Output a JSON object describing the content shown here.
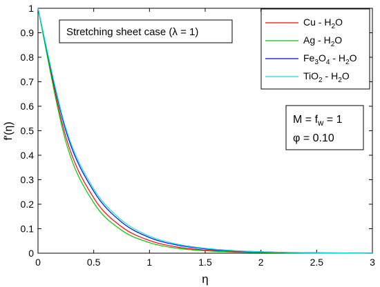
{
  "chart_data": {
    "type": "line",
    "xlabel": "η",
    "ylabel": "f'(η)",
    "xlim": [
      0,
      3
    ],
    "ylim": [
      0,
      1
    ],
    "xticks": [
      "0",
      "0.5",
      "1",
      "1.5",
      "2",
      "2.5",
      "3"
    ],
    "yticks": [
      "0",
      "0.1",
      "0.2",
      "0.3",
      "0.4",
      "0.5",
      "0.6",
      "0.7",
      "0.8",
      "0.9",
      "1"
    ],
    "grid": false,
    "legend_position": "top-right",
    "x": [
      0,
      0.25,
      0.5,
      0.75,
      1.0,
      1.25,
      1.5,
      1.75,
      2.0,
      2.25,
      2.5,
      2.75,
      3.0
    ],
    "series": [
      {
        "name": "Cu - H2O",
        "label_main": "Cu - H",
        "label_parts": [
          {
            "t": "Cu - H"
          },
          {
            "t": "2",
            "sub": true
          },
          {
            "t": "O"
          }
        ],
        "color": "#ff0000",
        "values": [
          1.0,
          0.475,
          0.226,
          0.108,
          0.052,
          0.025,
          0.013,
          0.007,
          0.004,
          0.002,
          0.001,
          0.0005,
          0.0
        ]
      },
      {
        "name": "Ag - H2O",
        "label_parts": [
          {
            "t": "Ag - H"
          },
          {
            "t": "2",
            "sub": true
          },
          {
            "t": "O"
          }
        ],
        "color": "#00c800",
        "values": [
          1.0,
          0.455,
          0.206,
          0.094,
          0.043,
          0.02,
          0.01,
          0.005,
          0.003,
          0.0015,
          0.0008,
          0.0004,
          0.0
        ]
      },
      {
        "name": "Fe3O4 - H2O",
        "label_parts": [
          {
            "t": "Fe"
          },
          {
            "t": "3",
            "sub": true
          },
          {
            "t": "O"
          },
          {
            "t": "4",
            "sub": true
          },
          {
            "t": " - H"
          },
          {
            "t": "2",
            "sub": true
          },
          {
            "t": "O"
          }
        ],
        "color": "#0000ff",
        "values": [
          1.0,
          0.5,
          0.253,
          0.127,
          0.064,
          0.033,
          0.018,
          0.01,
          0.006,
          0.003,
          0.002,
          0.001,
          0.0
        ]
      },
      {
        "name": "TiO2 - H2O",
        "label_parts": [
          {
            "t": "TiO"
          },
          {
            "t": "2",
            "sub": true
          },
          {
            "t": " - H"
          },
          {
            "t": "2",
            "sub": true
          },
          {
            "t": "O"
          }
        ],
        "color": "#00e5e5",
        "values": [
          1.0,
          0.51,
          0.263,
          0.135,
          0.07,
          0.037,
          0.02,
          0.011,
          0.006,
          0.003,
          0.002,
          0.001,
          0.0
        ]
      }
    ],
    "annotations": {
      "case_box": {
        "text": "Stretching sheet case (λ = 1)"
      },
      "params_box": {
        "line1_parts": [
          {
            "t": "M = f"
          },
          {
            "t": "w",
            "sub": true
          },
          {
            "t": " = 1"
          }
        ],
        "line2": "φ = 0.10"
      }
    }
  }
}
